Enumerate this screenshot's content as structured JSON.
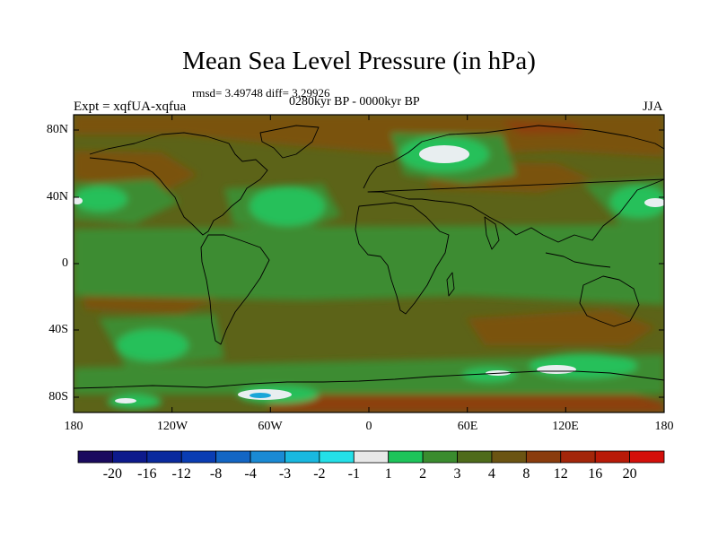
{
  "title": "Mean Sea Level Pressure (in hPa)",
  "stats_text": "rmsd= 3.49748 diff= 3.29926",
  "period_text": "0280kyr BP - 0000kyr BP",
  "experiment_text": "Expt = xqfUA-xqfua",
  "season": "JJA",
  "lat_labels": [
    "80N",
    "40N",
    "0",
    "40S",
    "80S"
  ],
  "lon_labels": [
    "180",
    "120W",
    "60W",
    "0",
    "60E",
    "120E",
    "180"
  ],
  "colorbar": {
    "labels": [
      "-20",
      "-16",
      "-12",
      "-8",
      "-4",
      "-3",
      "-2",
      "-1",
      "1",
      "2",
      "3",
      "4",
      "8",
      "12",
      "16",
      "20"
    ],
    "colors": [
      "#1a0a5e",
      "#0d1a8c",
      "#0a2a9e",
      "#0a3db3",
      "#1366c4",
      "#1a8ad4",
      "#19b8e0",
      "#24e0e8",
      "#e8e8e8",
      "#1dc45a",
      "#3a8c2e",
      "#4e6b1a",
      "#6b5412",
      "#8a3c0d",
      "#a3260a",
      "#b81a08",
      "#d40f0a"
    ]
  },
  "map_colors": {
    "background_level_4": "#5c6318",
    "level_8": "#7a5210",
    "level_12": "#8c3f10",
    "level_3": "#3d8c30",
    "level_2": "#27c05a",
    "level_1": "#e8eef0",
    "level_minus_2": "#1aa6d8",
    "coastline": "#000000"
  }
}
